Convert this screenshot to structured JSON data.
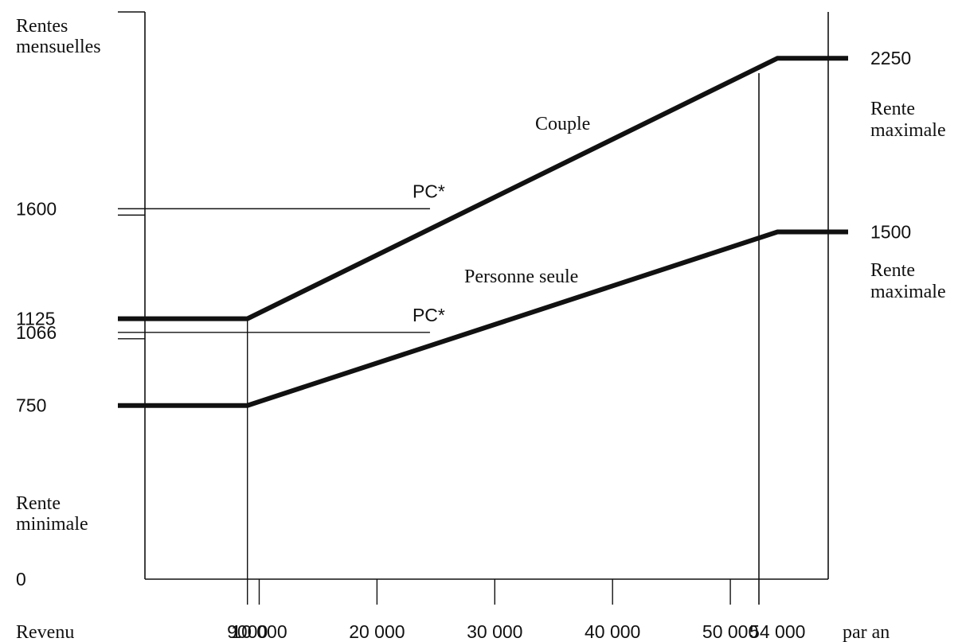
{
  "chart_data": {
    "type": "line",
    "y_title_lines": [
      "Rentes",
      "mensuelles"
    ],
    "x_title": "Revenu",
    "x_unit": "par an",
    "y_ticks": [
      {
        "value": 0,
        "label": "0"
      },
      {
        "value": 750,
        "label": "750"
      },
      {
        "value": 1066,
        "label": "1066"
      },
      {
        "value": 1125,
        "label": "1125"
      },
      {
        "value": 1600,
        "label": "1600"
      }
    ],
    "right_ticks": [
      {
        "value": 1500,
        "label": "1500"
      },
      {
        "value": 2250,
        "label": "2250"
      }
    ],
    "x_ticks": [
      {
        "value": 9000,
        "label": "9000"
      },
      {
        "value": 10000,
        "label": "10 000"
      },
      {
        "value": 20000,
        "label": "20 000"
      },
      {
        "value": 30000,
        "label": "30 000"
      },
      {
        "value": 40000,
        "label": "40 000"
      },
      {
        "value": 50000,
        "label": "50 000"
      },
      {
        "value": 54000,
        "label": "54 000"
      }
    ],
    "xlim": [
      -2000,
      60000
    ],
    "ylim": [
      0,
      2450
    ],
    "series": [
      {
        "name": "Couple",
        "x": [
          -2000,
          9000,
          54000,
          60000
        ],
        "y": [
          1125,
          1125,
          2250,
          2250
        ]
      },
      {
        "name": "Personne seule",
        "x": [
          -2000,
          9000,
          54000,
          60000
        ],
        "y": [
          750,
          750,
          1500,
          1500
        ]
      }
    ],
    "reference_lines": [
      {
        "y": 1600,
        "x_to": 24500,
        "label": "PC*"
      },
      {
        "y": 1066,
        "x_to": 24500,
        "label": "PC*"
      }
    ],
    "annotations": {
      "min_lines": [
        "Rente",
        "minimale"
      ],
      "max_couple_lines": [
        "Rente",
        "maximale"
      ],
      "max_single_lines": [
        "Rente",
        "maximale"
      ]
    }
  }
}
